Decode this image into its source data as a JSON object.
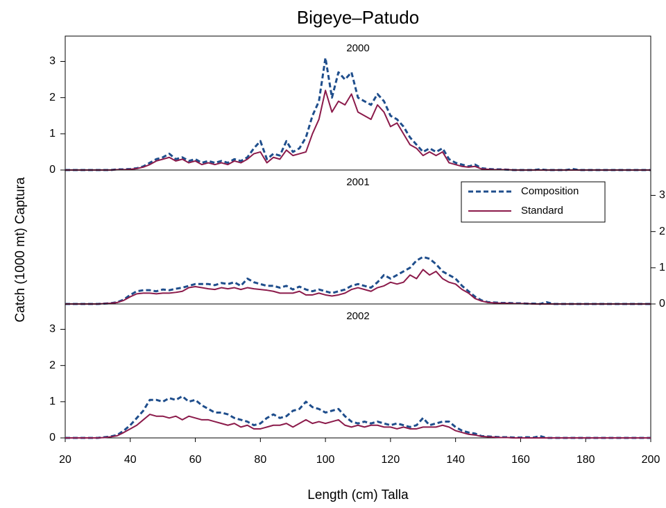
{
  "title": "Bigeye–Patudo",
  "x_label": "Length (cm) Talla",
  "y_label": "Catch (1000 mt) Captura",
  "chart_data": [
    {
      "type": "line",
      "title": "2000",
      "x": [
        20,
        22,
        24,
        26,
        28,
        30,
        32,
        34,
        36,
        38,
        40,
        42,
        44,
        46,
        48,
        50,
        52,
        54,
        56,
        58,
        60,
        62,
        64,
        66,
        68,
        70,
        72,
        74,
        76,
        78,
        80,
        82,
        84,
        86,
        88,
        90,
        92,
        94,
        96,
        98,
        100,
        102,
        104,
        106,
        108,
        110,
        112,
        114,
        116,
        118,
        120,
        122,
        124,
        126,
        128,
        130,
        132,
        134,
        136,
        138,
        140,
        142,
        144,
        146,
        148,
        150,
        152,
        154,
        156,
        158,
        160,
        162,
        164,
        166,
        168,
        170,
        172,
        174,
        176,
        178,
        180,
        182,
        184,
        186,
        188,
        190,
        192,
        194,
        196,
        198,
        200
      ],
      "series": [
        {
          "color": "#1f4e8c",
          "linestyle": "dashed",
          "values": [
            0,
            0,
            0,
            0,
            0,
            0,
            0,
            0,
            0.02,
            0.02,
            0.03,
            0.05,
            0.1,
            0.2,
            0.3,
            0.35,
            0.45,
            0.3,
            0.35,
            0.25,
            0.3,
            0.2,
            0.25,
            0.2,
            0.25,
            0.2,
            0.3,
            0.25,
            0.35,
            0.6,
            0.8,
            0.3,
            0.45,
            0.4,
            0.8,
            0.5,
            0.6,
            0.9,
            1.5,
            1.9,
            3.1,
            2.0,
            2.7,
            2.5,
            2.7,
            2.0,
            1.9,
            1.8,
            2.1,
            1.9,
            1.5,
            1.4,
            1.2,
            0.9,
            0.7,
            0.5,
            0.6,
            0.5,
            0.6,
            0.3,
            0.2,
            0.15,
            0.1,
            0.15,
            0.05,
            0.03,
            0.02,
            0.02,
            0.01,
            0,
            0,
            0,
            0,
            0.02,
            0,
            0,
            0,
            0,
            0.03,
            0,
            0,
            0,
            0,
            0,
            0,
            0,
            0,
            0,
            0,
            0,
            0
          ]
        },
        {
          "color": "#8b1a4a",
          "linestyle": "solid",
          "values": [
            0,
            0,
            0,
            0,
            0,
            0,
            0,
            0,
            0.01,
            0.01,
            0.02,
            0.04,
            0.08,
            0.15,
            0.25,
            0.3,
            0.35,
            0.25,
            0.3,
            0.2,
            0.25,
            0.15,
            0.2,
            0.15,
            0.2,
            0.15,
            0.25,
            0.2,
            0.3,
            0.45,
            0.5,
            0.2,
            0.35,
            0.3,
            0.55,
            0.4,
            0.45,
            0.5,
            1.0,
            1.4,
            2.2,
            1.6,
            1.9,
            1.8,
            2.1,
            1.6,
            1.5,
            1.4,
            1.8,
            1.6,
            1.2,
            1.3,
            1.0,
            0.7,
            0.6,
            0.4,
            0.5,
            0.4,
            0.5,
            0.2,
            0.15,
            0.1,
            0.08,
            0.1,
            0.03,
            0.02,
            0.01,
            0.01,
            0.01,
            0,
            0,
            0,
            0,
            0,
            0,
            0,
            0,
            0,
            0,
            0,
            0,
            0,
            0,
            0,
            0,
            0,
            0,
            0,
            0,
            0,
            0
          ]
        }
      ],
      "xlim": [
        20,
        200
      ],
      "ylim": [
        0,
        3.7
      ],
      "yticks": [
        0,
        1,
        2,
        3
      ]
    },
    {
      "type": "line",
      "title": "2001",
      "x": [
        20,
        22,
        24,
        26,
        28,
        30,
        32,
        34,
        36,
        38,
        40,
        42,
        44,
        46,
        48,
        50,
        52,
        54,
        56,
        58,
        60,
        62,
        64,
        66,
        68,
        70,
        72,
        74,
        76,
        78,
        80,
        82,
        84,
        86,
        88,
        90,
        92,
        94,
        96,
        98,
        100,
        102,
        104,
        106,
        108,
        110,
        112,
        114,
        116,
        118,
        120,
        122,
        124,
        126,
        128,
        130,
        132,
        134,
        136,
        138,
        140,
        142,
        144,
        146,
        148,
        150,
        152,
        154,
        156,
        158,
        160,
        162,
        164,
        166,
        168,
        170,
        172,
        174,
        176,
        178,
        180,
        182,
        184,
        186,
        188,
        190,
        192,
        194,
        196,
        198,
        200
      ],
      "series": [
        {
          "name": "Composition",
          "color": "#1f4e8c",
          "linestyle": "dashed",
          "axis": "y2",
          "values": [
            0,
            0,
            0,
            0,
            0,
            0,
            0.01,
            0.02,
            0.05,
            0.12,
            0.25,
            0.35,
            0.38,
            0.38,
            0.35,
            0.4,
            0.38,
            0.42,
            0.45,
            0.5,
            0.55,
            0.55,
            0.55,
            0.52,
            0.58,
            0.55,
            0.6,
            0.5,
            0.7,
            0.6,
            0.55,
            0.5,
            0.5,
            0.45,
            0.5,
            0.4,
            0.48,
            0.4,
            0.35,
            0.4,
            0.35,
            0.3,
            0.35,
            0.4,
            0.5,
            0.55,
            0.5,
            0.45,
            0.6,
            0.8,
            0.7,
            0.8,
            0.9,
            1.0,
            1.2,
            1.3,
            1.25,
            1.1,
            0.9,
            0.8,
            0.7,
            0.5,
            0.35,
            0.2,
            0.1,
            0.05,
            0.04,
            0.03,
            0.03,
            0.02,
            0.02,
            0.01,
            0.01,
            0,
            0.05,
            0,
            0,
            0,
            0,
            0,
            0,
            0,
            0,
            0,
            0,
            0,
            0,
            0,
            0,
            0,
            0
          ]
        },
        {
          "name": "Standard",
          "color": "#8b1a4a",
          "linestyle": "solid",
          "axis": "y2",
          "values": [
            0,
            0,
            0,
            0,
            0,
            0,
            0.01,
            0.02,
            0.04,
            0.1,
            0.2,
            0.28,
            0.3,
            0.3,
            0.28,
            0.3,
            0.3,
            0.32,
            0.35,
            0.45,
            0.48,
            0.45,
            0.42,
            0.4,
            0.45,
            0.42,
            0.45,
            0.4,
            0.45,
            0.42,
            0.4,
            0.38,
            0.35,
            0.3,
            0.3,
            0.3,
            0.35,
            0.25,
            0.25,
            0.3,
            0.25,
            0.22,
            0.25,
            0.3,
            0.4,
            0.45,
            0.4,
            0.35,
            0.45,
            0.5,
            0.6,
            0.55,
            0.6,
            0.8,
            0.7,
            0.95,
            0.8,
            0.9,
            0.7,
            0.6,
            0.55,
            0.4,
            0.3,
            0.15,
            0.08,
            0.04,
            0.03,
            0.02,
            0.02,
            0.01,
            0.01,
            0.01,
            0,
            0,
            0,
            0,
            0,
            0,
            0,
            0,
            0,
            0,
            0,
            0,
            0,
            0,
            0,
            0,
            0,
            0,
            0
          ]
        }
      ],
      "xlim": [
        20,
        200
      ],
      "y2lim": [
        0,
        3.7
      ],
      "y2ticks": [
        0,
        1,
        2,
        3
      ],
      "legend": "upper right"
    },
    {
      "type": "line",
      "title": "2002",
      "x": [
        20,
        22,
        24,
        26,
        28,
        30,
        32,
        34,
        36,
        38,
        40,
        42,
        44,
        46,
        48,
        50,
        52,
        54,
        56,
        58,
        60,
        62,
        64,
        66,
        68,
        70,
        72,
        74,
        76,
        78,
        80,
        82,
        84,
        86,
        88,
        90,
        92,
        94,
        96,
        98,
        100,
        102,
        104,
        106,
        108,
        110,
        112,
        114,
        116,
        118,
        120,
        122,
        124,
        126,
        128,
        130,
        132,
        134,
        136,
        138,
        140,
        142,
        144,
        146,
        148,
        150,
        152,
        154,
        156,
        158,
        160,
        162,
        164,
        166,
        168,
        170,
        172,
        174,
        176,
        178,
        180,
        182,
        184,
        186,
        188,
        190,
        192,
        194,
        196,
        198,
        200
      ],
      "series": [
        {
          "color": "#1f4e8c",
          "linestyle": "dashed",
          "values": [
            0,
            0,
            0,
            0,
            0,
            0,
            0.02,
            0.04,
            0.08,
            0.2,
            0.35,
            0.55,
            0.75,
            1.05,
            1.05,
            1.0,
            1.1,
            1.05,
            1.15,
            1.0,
            1.05,
            0.9,
            0.8,
            0.7,
            0.7,
            0.65,
            0.55,
            0.5,
            0.45,
            0.35,
            0.4,
            0.55,
            0.65,
            0.55,
            0.6,
            0.75,
            0.8,
            1.0,
            0.85,
            0.8,
            0.7,
            0.75,
            0.8,
            0.6,
            0.45,
            0.4,
            0.45,
            0.4,
            0.45,
            0.4,
            0.35,
            0.4,
            0.35,
            0.3,
            0.35,
            0.55,
            0.35,
            0.4,
            0.45,
            0.45,
            0.3,
            0.2,
            0.15,
            0.12,
            0.05,
            0.04,
            0.03,
            0.02,
            0.02,
            0.01,
            0.01,
            0.02,
            0.01,
            0.05,
            0,
            0,
            0,
            0,
            0,
            0,
            0,
            0,
            0,
            0,
            0,
            0,
            0,
            0,
            0,
            0,
            0
          ]
        },
        {
          "color": "#8b1a4a",
          "linestyle": "solid",
          "values": [
            0,
            0,
            0,
            0,
            0,
            0,
            0.01,
            0.03,
            0.06,
            0.15,
            0.25,
            0.35,
            0.5,
            0.65,
            0.6,
            0.6,
            0.55,
            0.6,
            0.5,
            0.6,
            0.55,
            0.5,
            0.5,
            0.45,
            0.4,
            0.35,
            0.4,
            0.3,
            0.35,
            0.25,
            0.25,
            0.3,
            0.35,
            0.35,
            0.4,
            0.3,
            0.4,
            0.5,
            0.4,
            0.45,
            0.4,
            0.45,
            0.5,
            0.35,
            0.3,
            0.35,
            0.3,
            0.35,
            0.35,
            0.3,
            0.3,
            0.25,
            0.3,
            0.25,
            0.25,
            0.3,
            0.3,
            0.3,
            0.35,
            0.3,
            0.2,
            0.15,
            0.1,
            0.08,
            0.04,
            0.03,
            0.02,
            0.01,
            0.01,
            0,
            0,
            0,
            0,
            0,
            0,
            0,
            0,
            0,
            0,
            0,
            0,
            0,
            0,
            0,
            0,
            0,
            0,
            0,
            0,
            0,
            0
          ]
        }
      ],
      "xlim": [
        20,
        200
      ],
      "ylim": [
        0,
        3.7
      ],
      "yticks": [
        0,
        1,
        2,
        3
      ],
      "xticks": [
        20,
        40,
        60,
        80,
        100,
        120,
        140,
        160,
        180,
        200
      ]
    }
  ]
}
